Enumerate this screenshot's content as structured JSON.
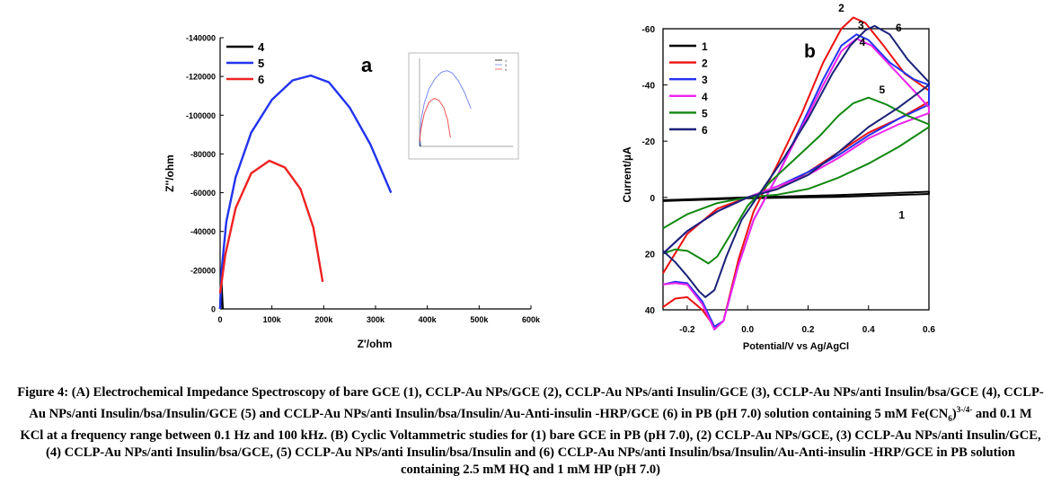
{
  "chart_data": [
    {
      "type": "line",
      "panel_label": "a",
      "xlabel": "Z'/ohm",
      "ylabel": "Z''/ohm",
      "xlim": [
        0,
        600000
      ],
      "ylim": [
        0,
        -140000
      ],
      "x_ticks": [
        "0",
        "100k",
        "200k",
        "300k",
        "400k",
        "500k",
        "600k"
      ],
      "y_ticks": [
        "0",
        "-20000",
        "-40000",
        "-60000",
        "-80000",
        "-100000",
        "-120000",
        "-140000"
      ],
      "legend_position": "top-left",
      "series": [
        {
          "name": "4",
          "color": "#000000",
          "points": [
            [
              0,
              0
            ],
            [
              1000,
              -6000
            ],
            [
              2500,
              -15000
            ],
            [
              3500,
              -8000
            ],
            [
              5000,
              0
            ]
          ]
        },
        {
          "name": "5",
          "color": "#2233ee",
          "points": [
            [
              0,
              0
            ],
            [
              3000,
              -20000
            ],
            [
              12000,
              -45000
            ],
            [
              30000,
              -68000
            ],
            [
              60000,
              -91000
            ],
            [
              100000,
              -108000
            ],
            [
              140000,
              -118000
            ],
            [
              175000,
              -120500
            ],
            [
              210000,
              -117000
            ],
            [
              250000,
              -104000
            ],
            [
              290000,
              -85000
            ],
            [
              330000,
              -60000
            ]
          ]
        },
        {
          "name": "6",
          "color": "#ee2222",
          "points": [
            [
              0,
              -8000
            ],
            [
              10000,
              -28000
            ],
            [
              30000,
              -52000
            ],
            [
              60000,
              -70000
            ],
            [
              95000,
              -76500
            ],
            [
              125000,
              -73000
            ],
            [
              155000,
              -62000
            ],
            [
              180000,
              -42000
            ],
            [
              198000,
              -14000
            ]
          ]
        }
      ],
      "inset": {
        "series_colors": [
          "#000000",
          "#7788ee",
          "#ee5555"
        ],
        "legend": [
          "4",
          "5",
          "6"
        ]
      }
    },
    {
      "type": "line",
      "panel_label": "b",
      "xlabel": "Potential/V vs Ag/AgCl",
      "ylabel": "Current/µA",
      "xlim": [
        -0.28,
        0.6
      ],
      "ylim": [
        40,
        -60
      ],
      "x_ticks": [
        "-0.2",
        "0.0",
        "0.2",
        "0.4",
        "0.6"
      ],
      "y_ticks": [
        "40",
        "20",
        "0",
        "-20",
        "-40",
        "-60"
      ],
      "legend_position": "top-left",
      "curve_labels": [
        "2",
        "3",
        "4",
        "5",
        "6",
        "1"
      ],
      "series": [
        {
          "name": "1",
          "color": "#000000",
          "forward": [
            [
              -0.28,
              1
            ],
            [
              0,
              0
            ],
            [
              0.3,
              -0.8
            ],
            [
              0.6,
              -2
            ]
          ],
          "reverse": [
            [
              0.6,
              -1.2
            ],
            [
              0.3,
              -0.2
            ],
            [
              0,
              0.3
            ],
            [
              -0.28,
              1.3
            ]
          ]
        },
        {
          "name": "2",
          "color": "#ee1111",
          "forward": [
            [
              -0.28,
              39
            ],
            [
              -0.24,
              36
            ],
            [
              -0.2,
              35.5
            ],
            [
              -0.15,
              40
            ],
            [
              -0.11,
              46
            ],
            [
              -0.08,
              44
            ],
            [
              -0.03,
              22
            ],
            [
              0.02,
              5
            ],
            [
              0.1,
              -12
            ],
            [
              0.18,
              -30
            ],
            [
              0.25,
              -48
            ],
            [
              0.31,
              -60
            ],
            [
              0.35,
              -64
            ],
            [
              0.39,
              -62
            ],
            [
              0.45,
              -54
            ],
            [
              0.52,
              -44
            ],
            [
              0.6,
              -38
            ]
          ],
          "reverse": [
            [
              0.6,
              -34
            ],
            [
              0.5,
              -28
            ],
            [
              0.4,
              -23
            ],
            [
              0.3,
              -16
            ],
            [
              0.2,
              -9
            ],
            [
              0.1,
              -3
            ],
            [
              0.0,
              0
            ],
            [
              -0.1,
              4
            ],
            [
              -0.2,
              13
            ],
            [
              -0.28,
              27
            ]
          ]
        },
        {
          "name": "3",
          "color": "#2233ee",
          "forward": [
            [
              -0.28,
              31
            ],
            [
              -0.24,
              30
            ],
            [
              -0.2,
              30.5
            ],
            [
              -0.15,
              37
            ],
            [
              -0.11,
              46
            ],
            [
              -0.08,
              44
            ],
            [
              -0.03,
              24
            ],
            [
              0.02,
              8
            ],
            [
              0.1,
              -8
            ],
            [
              0.18,
              -26
            ],
            [
              0.25,
              -42
            ],
            [
              0.31,
              -54
            ],
            [
              0.36,
              -58
            ],
            [
              0.4,
              -56
            ],
            [
              0.47,
              -48
            ],
            [
              0.55,
              -42
            ],
            [
              0.6,
              -40
            ]
          ],
          "reverse": [
            [
              0.6,
              -33
            ],
            [
              0.5,
              -28
            ],
            [
              0.4,
              -22
            ],
            [
              0.3,
              -15
            ],
            [
              0.2,
              -9
            ],
            [
              0.1,
              -4
            ],
            [
              0.0,
              0
            ],
            [
              -0.1,
              5
            ],
            [
              -0.2,
              12
            ],
            [
              -0.28,
              20
            ]
          ]
        },
        {
          "name": "4",
          "color": "#ee22ee",
          "forward": [
            [
              -0.28,
              31
            ],
            [
              -0.24,
              30.5
            ],
            [
              -0.2,
              31
            ],
            [
              -0.15,
              38
            ],
            [
              -0.11,
              47
            ],
            [
              -0.08,
              44
            ],
            [
              -0.03,
              24
            ],
            [
              0.02,
              8
            ],
            [
              0.1,
              -8
            ],
            [
              0.18,
              -25
            ],
            [
              0.25,
              -40
            ],
            [
              0.31,
              -52
            ],
            [
              0.36,
              -56.5
            ],
            [
              0.41,
              -54
            ],
            [
              0.48,
              -46
            ],
            [
              0.55,
              -38
            ],
            [
              0.6,
              -32
            ]
          ],
          "reverse": [
            [
              0.6,
              -30
            ],
            [
              0.5,
              -26
            ],
            [
              0.4,
              -21
            ],
            [
              0.3,
              -14
            ],
            [
              0.2,
              -8
            ],
            [
              0.1,
              -4
            ],
            [
              0.0,
              0
            ],
            [
              -0.1,
              5
            ],
            [
              -0.2,
              12
            ],
            [
              -0.28,
              20
            ]
          ]
        },
        {
          "name": "5",
          "color": "#118811",
          "forward": [
            [
              -0.28,
              20
            ],
            [
              -0.24,
              18.5
            ],
            [
              -0.2,
              19
            ],
            [
              -0.16,
              21.5
            ],
            [
              -0.13,
              23.5
            ],
            [
              -0.1,
              21
            ],
            [
              -0.05,
              12
            ],
            [
              0.0,
              3
            ],
            [
              0.08,
              -6
            ],
            [
              0.16,
              -14
            ],
            [
              0.24,
              -22
            ],
            [
              0.3,
              -29
            ],
            [
              0.35,
              -33.5
            ],
            [
              0.4,
              -35.5
            ],
            [
              0.46,
              -33
            ],
            [
              0.53,
              -29
            ],
            [
              0.6,
              -26
            ]
          ],
          "reverse": [
            [
              0.6,
              -25
            ],
            [
              0.5,
              -18
            ],
            [
              0.4,
              -12
            ],
            [
              0.3,
              -7
            ],
            [
              0.2,
              -3
            ],
            [
              0.1,
              -1
            ],
            [
              0.0,
              0
            ],
            [
              -0.1,
              2
            ],
            [
              -0.2,
              6
            ],
            [
              -0.28,
              11
            ]
          ]
        },
        {
          "name": "6",
          "color": "#1a2277",
          "forward": [
            [
              -0.28,
              19
            ],
            [
              -0.24,
              23
            ],
            [
              -0.2,
              28
            ],
            [
              -0.16,
              33.5
            ],
            [
              -0.14,
              35.5
            ],
            [
              -0.11,
              33
            ],
            [
              -0.07,
              21
            ],
            [
              -0.02,
              8
            ],
            [
              0.05,
              -3
            ],
            [
              0.12,
              -14
            ],
            [
              0.2,
              -28
            ],
            [
              0.28,
              -44
            ],
            [
              0.34,
              -54
            ],
            [
              0.39,
              -59.5
            ],
            [
              0.42,
              -61
            ],
            [
              0.47,
              -58
            ],
            [
              0.53,
              -49
            ],
            [
              0.6,
              -41
            ]
          ],
          "reverse": [
            [
              0.6,
              -40
            ],
            [
              0.5,
              -32
            ],
            [
              0.4,
              -25
            ],
            [
              0.3,
              -16
            ],
            [
              0.2,
              -8
            ],
            [
              0.1,
              -3
            ],
            [
              0.0,
              0
            ],
            [
              -0.1,
              5
            ],
            [
              -0.2,
              12
            ],
            [
              -0.28,
              20
            ]
          ]
        }
      ]
    }
  ],
  "caption": {
    "p1": "Figure 4: (A) Electrochemical Impedance Spectroscopy of bare GCE (1), CCLP-Au NPs/GCE (2), CCLP-Au NPs/anti Insulin/GCE (3), CCLP-Au NPs/anti Insulin/bsa/GCE (4), CCLP-Au NPs/anti Insulin/bsa/Insulin/GCE (5) and CCLP-Au NPs/anti Insulin/bsa/Insulin/Au-Anti-insulin -HRP/GCE (6) in PB (pH 7.0) solution containing 5 mM Fe(CN",
    "sub": "6",
    "close": ")",
    "sup": "3-/4-",
    "p2": " and 0.1 M KCl at a frequency range between 0.1 Hz and 100 kHz. (B) Cyclic Voltammetric studies for (1) bare GCE in PB (pH 7.0), (2) CCLP-Au NPs/GCE, (3) CCLP-Au NPs/anti Insulin/GCE, (4) CCLP-Au NPs/anti Insulin/bsa/GCE, (5) CCLP-Au NPs/anti Insulin/bsa/Insulin and (6) CCLP-Au NPs/anti Insulin/bsa/Insulin/Au-Anti-insulin -HRP/GCE in PB solution containing 2.5 mM HQ and 1 mM HP (pH 7.0)"
  }
}
